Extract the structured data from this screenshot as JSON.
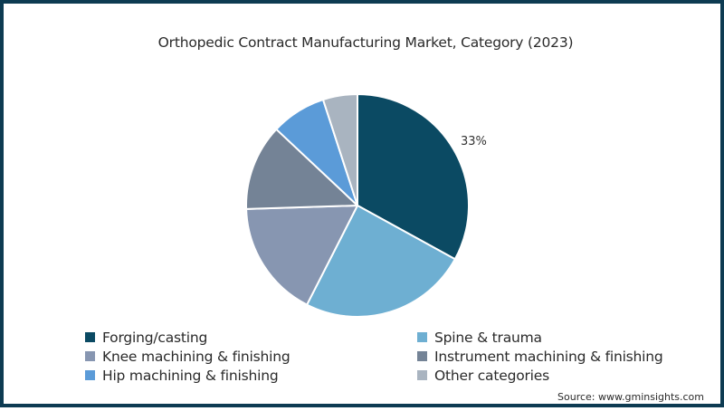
{
  "chart_data": {
    "type": "pie",
    "title": "Orthopedic Contract Manufacturing Market, Category (2023)",
    "categories": [
      "Forging/casting",
      "Spine & trauma",
      "Knee machining & finishing",
      "Instrument machining & finishing",
      "Hip machining & finishing",
      "Other categories"
    ],
    "values": [
      33,
      24.5,
      17,
      12.5,
      8,
      5
    ],
    "colors": [
      "#0b4a63",
      "#6eafd2",
      "#8796b1",
      "#748396",
      "#5b9bd8",
      "#a9b4c0"
    ],
    "data_labels": [
      {
        "category": "Forging/casting",
        "label": "33%"
      }
    ],
    "start_angle_deg": 0,
    "direction": "clockwise",
    "legend_position": "bottom",
    "source": "Source: www.gminsights.com"
  },
  "header": {
    "title": "Orthopedic Contract Manufacturing Market, Category (2023)"
  },
  "labels": {
    "forging_pct": "33%"
  },
  "legend": {
    "items": [
      {
        "label": "Forging/casting",
        "color": "#0b4a63"
      },
      {
        "label": "Spine & trauma",
        "color": "#6eafd2"
      },
      {
        "label": "Knee machining & finishing",
        "color": "#8796b1"
      },
      {
        "label": "Instrument machining & finishing",
        "color": "#748396"
      },
      {
        "label": "Hip machining & finishing",
        "color": "#5b9bd8"
      },
      {
        "label": "Other categories",
        "color": "#a9b4c0"
      }
    ]
  },
  "footer": {
    "source": "Source: www.gminsights.com"
  },
  "theme": {
    "frame_color": "#0d3b52"
  }
}
